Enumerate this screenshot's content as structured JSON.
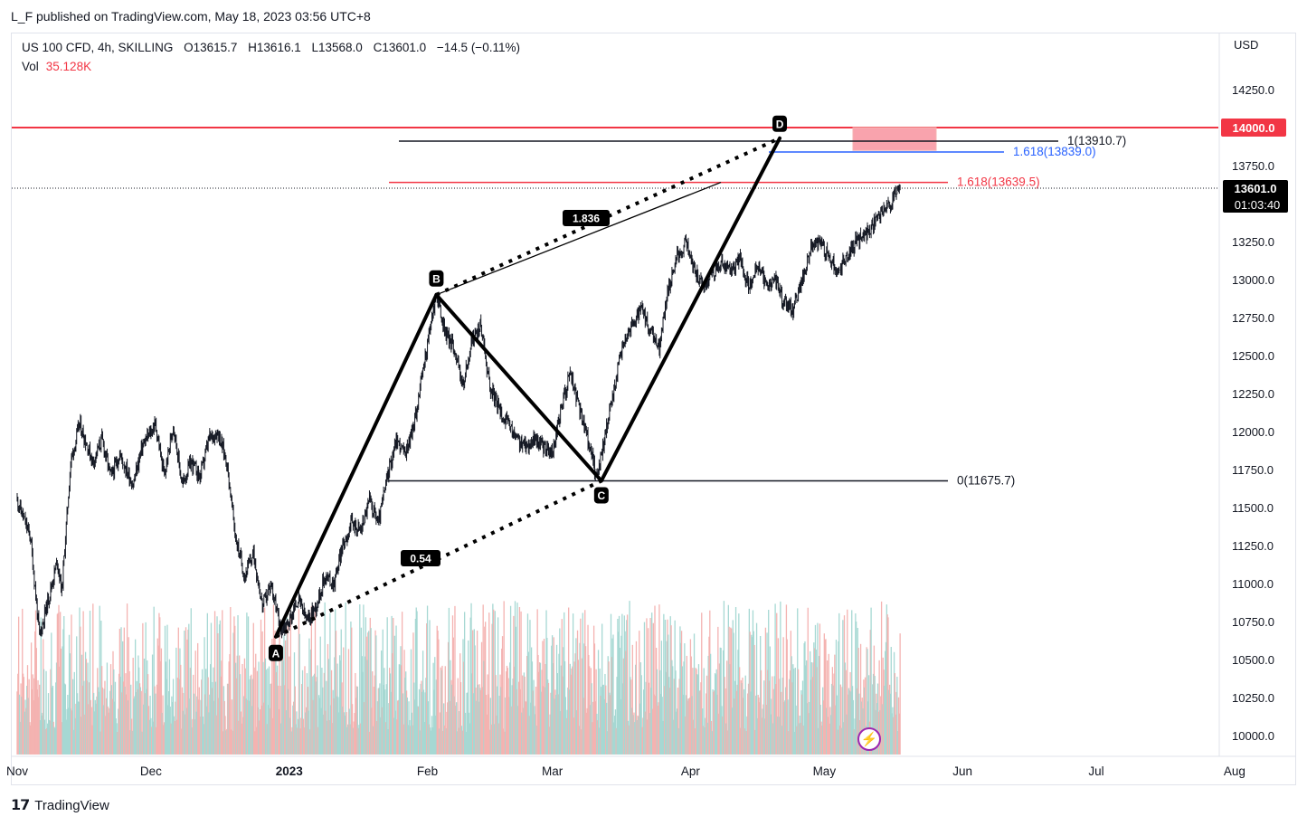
{
  "header": {
    "credit": "L_F published on TradingView.com, May 18, 2023 03:56 UTC+8"
  },
  "legend": {
    "symbol": "US 100 CFD, 4h, SKILLING",
    "open": "O13615.7",
    "high": "H13616.1",
    "low": "L13568.0",
    "close": "C13601.0",
    "change": "−14.5 (−0.11%)",
    "vol_label": "Vol",
    "vol_value": "35.128K"
  },
  "axis": {
    "currency": "USD"
  },
  "price_tags": {
    "level": "14000.0",
    "last": "13601.0",
    "countdown": "01:03:40"
  },
  "footer": {
    "brand": "TradingView"
  },
  "colors": {
    "up": "#26a69a",
    "down": "#ef5350",
    "red_line": "#f23645",
    "blue": "#2962ff",
    "zone": "#f9a3ad"
  },
  "chart_data": {
    "type": "candlestick",
    "title": "US 100 CFD, 4h, SKILLING",
    "ylim": [
      9900,
      14400
    ],
    "y_ticks": [
      10000,
      10250,
      10500,
      10750,
      11000,
      11250,
      11500,
      11750,
      12000,
      12250,
      12500,
      12750,
      13000,
      13250,
      13750,
      14250
    ],
    "y_tick_labels": [
      "10000.0",
      "10250.0",
      "10500.0",
      "10750.0",
      "11000.0",
      "11250.0",
      "11500.0",
      "11750.0",
      "12000.0",
      "12250.0",
      "12500.0",
      "12750.0",
      "13000.0",
      "13250.0",
      "13750.0",
      "14250.0"
    ],
    "x_labels": [
      "Nov",
      "Dec",
      "2023",
      "Feb",
      "Mar",
      "Apr",
      "May",
      "Jun",
      "Jul",
      "Aug"
    ],
    "x_label_days": [
      0,
      30,
      61,
      92,
      120,
      151,
      181,
      212,
      242,
      273
    ],
    "price_path": [
      [
        0,
        11550
      ],
      [
        3,
        11300
      ],
      [
        5,
        10650
      ],
      [
        7,
        10900
      ],
      [
        9,
        11150
      ],
      [
        10,
        10950
      ],
      [
        12,
        11800
      ],
      [
        14,
        12050
      ],
      [
        17,
        11800
      ],
      [
        19,
        11950
      ],
      [
        21,
        11700
      ],
      [
        23,
        11850
      ],
      [
        26,
        11650
      ],
      [
        28,
        11900
      ],
      [
        31,
        12050
      ],
      [
        33,
        11700
      ],
      [
        35,
        12050
      ],
      [
        37,
        11650
      ],
      [
        39,
        11800
      ],
      [
        41,
        11700
      ],
      [
        43,
        11950
      ],
      [
        45,
        12000
      ],
      [
        47,
        11800
      ],
      [
        49,
        11300
      ],
      [
        51,
        11050
      ],
      [
        53,
        11200
      ],
      [
        55,
        10850
      ],
      [
        57,
        11000
      ],
      [
        59,
        10700
      ],
      [
        61,
        10750
      ],
      [
        63,
        10900
      ],
      [
        65,
        10750
      ],
      [
        67,
        10850
      ],
      [
        69,
        11050
      ],
      [
        71,
        11000
      ],
      [
        73,
        11250
      ],
      [
        75,
        11400
      ],
      [
        77,
        11350
      ],
      [
        79,
        11550
      ],
      [
        81,
        11400
      ],
      [
        83,
        11700
      ],
      [
        85,
        11950
      ],
      [
        87,
        11850
      ],
      [
        89,
        12050
      ],
      [
        91,
        12400
      ],
      [
        93,
        12750
      ],
      [
        94,
        12900
      ],
      [
        96,
        12650
      ],
      [
        98,
        12550
      ],
      [
        100,
        12300
      ],
      [
        102,
        12600
      ],
      [
        104,
        12700
      ],
      [
        106,
        12300
      ],
      [
        108,
        12150
      ],
      [
        110,
        12050
      ],
      [
        112,
        11950
      ],
      [
        114,
        11900
      ],
      [
        116,
        11950
      ],
      [
        118,
        11900
      ],
      [
        120,
        11850
      ],
      [
        122,
        12150
      ],
      [
        124,
        12400
      ],
      [
        126,
        12150
      ],
      [
        128,
        11950
      ],
      [
        130,
        11700
      ],
      [
        132,
        12000
      ],
      [
        134,
        12300
      ],
      [
        136,
        12600
      ],
      [
        138,
        12700
      ],
      [
        140,
        12800
      ],
      [
        142,
        12650
      ],
      [
        144,
        12550
      ],
      [
        146,
        12950
      ],
      [
        148,
        13150
      ],
      [
        150,
        13250
      ],
      [
        152,
        13050
      ],
      [
        154,
        12950
      ],
      [
        156,
        13050
      ],
      [
        158,
        13100
      ],
      [
        160,
        13050
      ],
      [
        162,
        13150
      ],
      [
        164,
        12950
      ],
      [
        166,
        13100
      ],
      [
        168,
        12950
      ],
      [
        170,
        13000
      ],
      [
        172,
        12850
      ],
      [
        174,
        12800
      ],
      [
        176,
        13000
      ],
      [
        178,
        13200
      ],
      [
        180,
        13250
      ],
      [
        182,
        13150
      ],
      [
        184,
        13050
      ],
      [
        186,
        13150
      ],
      [
        188,
        13250
      ],
      [
        190,
        13300
      ],
      [
        192,
        13350
      ],
      [
        194,
        13450
      ],
      [
        196,
        13500
      ],
      [
        198,
        13601
      ]
    ],
    "harmonic_pattern": {
      "points": [
        {
          "label": "A",
          "day": 58,
          "price": 10650
        },
        {
          "label": "B",
          "day": 94,
          "price": 12900
        },
        {
          "label": "C",
          "day": 131,
          "price": 11675.7
        },
        {
          "label": "D",
          "day": 171,
          "price": 13930
        }
      ],
      "ratios": [
        {
          "label": "0.54",
          "between": "A-C"
        },
        {
          "label": "1.836",
          "between": "B-D"
        }
      ]
    },
    "levels": [
      {
        "label": "1(13910.7)",
        "price": 13910.7,
        "color": "#131722"
      },
      {
        "label": "1.618(13839.0)",
        "price": 13839.0,
        "color": "#2962ff"
      },
      {
        "label": "1.618(13639.5)",
        "price": 13639.5,
        "color": "#f23645"
      },
      {
        "label": "0(11675.7)",
        "price": 11675.7,
        "color": "#131722"
      },
      {
        "label": "14000.0",
        "price": 14000,
        "color": "#f23645"
      }
    ],
    "zone": {
      "price_low": 13850,
      "price_high": 14000,
      "day_start": 193,
      "day_end": 212
    },
    "last_price": 13601.0,
    "volume_scale_max": 1,
    "volume_note": "Volume histogram at bottom (relative heights 0.3–1.0)"
  }
}
